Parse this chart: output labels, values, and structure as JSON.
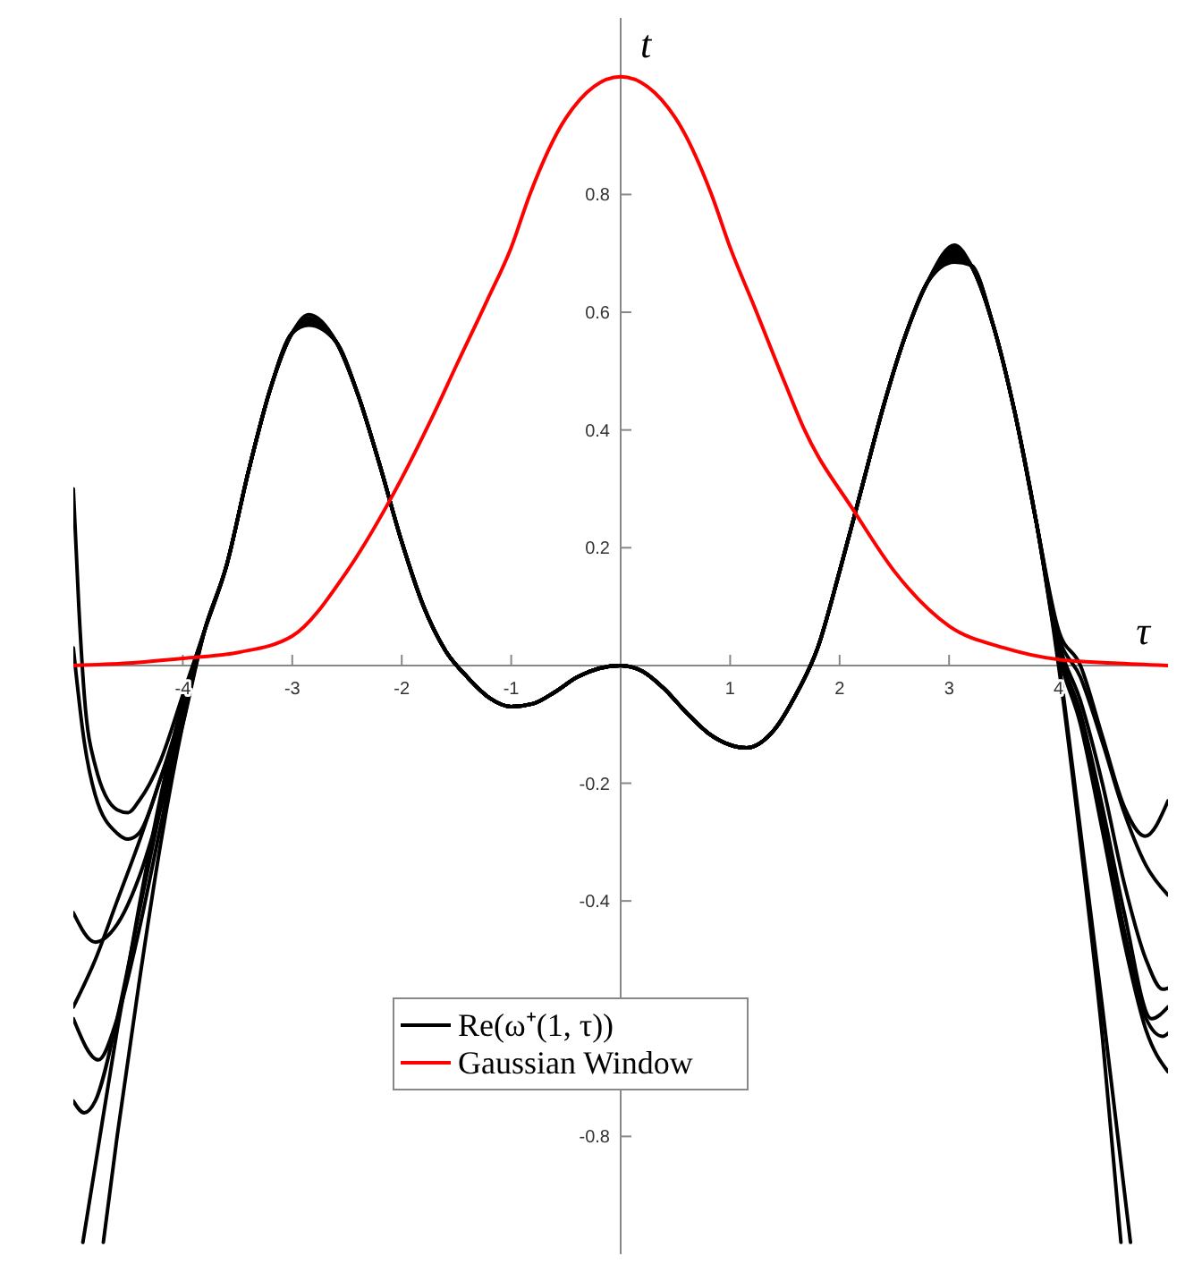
{
  "chart_data": {
    "type": "line",
    "xlabel": "τ",
    "ylabel": "t",
    "xlim": [
      -5,
      5
    ],
    "ylim": [
      -1,
      1.1
    ],
    "xticks": [
      -4,
      -3,
      -2,
      -1,
      1,
      2,
      3,
      4
    ],
    "yticks": [
      -0.8,
      -0.4,
      -0.2,
      0.2,
      0.4,
      0.6,
      0.8
    ],
    "legend": "bottom",
    "series": [
      {
        "name": "Re(ω⁺(1, τ))",
        "color": "#000000",
        "x": [
          -5,
          -4.95,
          -4.9,
          -4.8,
          -4.6,
          -4.5,
          -4.4,
          -4.2,
          -4,
          -3.8,
          -3.6,
          -3.4,
          -3.2,
          -3,
          -2.85,
          -2.6,
          -2.4,
          -2.2,
          -2,
          -1.8,
          -1.6,
          -1.4,
          -1.2,
          -1,
          -0.8,
          -0.6,
          -0.4,
          -0.2,
          0,
          0.2,
          0.4,
          0.6,
          0.8,
          1,
          1.15,
          1.4,
          1.6,
          1.8,
          2,
          2.2,
          2.4,
          2.6,
          2.8,
          3.05,
          3.2,
          3.4,
          3.6,
          3.8,
          4,
          4.2,
          4.4,
          4.6,
          4.79,
          5
        ],
        "values": [
          0.3,
          0.1,
          -0.05,
          -0.17,
          -0.245,
          -0.25,
          -0.23,
          -0.16,
          -0.05,
          0.06,
          0.17,
          0.33,
          0.47,
          0.565,
          0.596,
          0.55,
          0.46,
          0.34,
          0.21,
          0.1,
          0.025,
          -0.02,
          -0.055,
          -0.07,
          -0.065,
          -0.045,
          -0.02,
          -0.005,
          0,
          -0.01,
          -0.04,
          -0.08,
          -0.115,
          -0.135,
          -0.14,
          -0.11,
          -0.05,
          0.03,
          0.16,
          0.3,
          0.44,
          0.56,
          0.65,
          0.714,
          0.68,
          0.58,
          0.43,
          0.24,
          0.06,
          0,
          -0.12,
          -0.24,
          -0.29,
          -0.23
        ]
      },
      {
        "color": "#000000",
        "x": [
          -5,
          -4.9,
          -4.8,
          -4.6,
          -4.5,
          -4.4,
          -4.2,
          -4,
          -3.8,
          -3.6,
          -3.4,
          -3.2,
          -3,
          -2.85,
          -2.6,
          -2.4,
          -2.2,
          -2,
          -1.8,
          -1.6,
          -1.4,
          -1.2,
          -1,
          -0.8,
          -0.6,
          -0.4,
          -0.2,
          0,
          0.2,
          0.4,
          0.6,
          0.8,
          1,
          1.15,
          1.4,
          1.6,
          1.8,
          2,
          2.2,
          2.4,
          2.6,
          2.8,
          3.05,
          3.2,
          3.4,
          3.6,
          3.8,
          4,
          4.2,
          4.4,
          4.6,
          4.8,
          5
        ],
        "values": [
          0.03,
          -0.13,
          -0.22,
          -0.285,
          -0.295,
          -0.285,
          -0.19,
          -0.07,
          0.06,
          0.17,
          0.33,
          0.47,
          0.565,
          0.59,
          0.55,
          0.46,
          0.34,
          0.21,
          0.1,
          0.025,
          -0.02,
          -0.055,
          -0.07,
          -0.065,
          -0.045,
          -0.02,
          -0.005,
          0,
          -0.01,
          -0.04,
          -0.08,
          -0.115,
          -0.135,
          -0.14,
          -0.11,
          -0.05,
          0.03,
          0.16,
          0.3,
          0.44,
          0.56,
          0.65,
          0.71,
          0.68,
          0.58,
          0.43,
          0.24,
          0.05,
          -0.02,
          -0.13,
          -0.25,
          -0.34,
          -0.39
        ]
      },
      {
        "color": "#000000",
        "x": [
          -5,
          -4.8,
          -4.6,
          -4.4,
          -4.2,
          -4,
          -3.8,
          -3.6,
          -3.4,
          -3.2,
          -3,
          -2.85,
          -2.6,
          -2.4,
          -2.2,
          -2,
          -1.8,
          -1.6,
          -1.4,
          -1.2,
          -1,
          -0.8,
          -0.6,
          -0.4,
          -0.2,
          0,
          0.2,
          0.4,
          0.6,
          0.8,
          1,
          1.15,
          1.4,
          1.6,
          1.8,
          2,
          2.2,
          2.4,
          2.6,
          2.8,
          3.05,
          3.2,
          3.4,
          3.6,
          3.8,
          4,
          4.2,
          4.4,
          4.6,
          4.8,
          4.95,
          5
        ],
        "values": [
          -0.42,
          -0.47,
          -0.44,
          -0.36,
          -0.24,
          -0.1,
          0.06,
          0.17,
          0.33,
          0.47,
          0.565,
          0.588,
          0.55,
          0.46,
          0.34,
          0.21,
          0.1,
          0.025,
          -0.02,
          -0.055,
          -0.07,
          -0.065,
          -0.045,
          -0.02,
          -0.005,
          0,
          -0.01,
          -0.04,
          -0.08,
          -0.115,
          -0.135,
          -0.14,
          -0.11,
          -0.05,
          0.03,
          0.16,
          0.3,
          0.44,
          0.56,
          0.65,
          0.705,
          0.68,
          0.58,
          0.43,
          0.24,
          0.04,
          -0.06,
          -0.2,
          -0.37,
          -0.5,
          -0.55,
          -0.548
        ]
      },
      {
        "color": "#000000",
        "x": [
          -5,
          -4.8,
          -4.6,
          -4.4,
          -4.2,
          -4,
          -3.8,
          -3.6,
          -3.4,
          -3.2,
          -3,
          -2.85,
          -2.6,
          -2.4,
          -2.2,
          -2,
          -1.8,
          -1.6,
          -1.4,
          -1.2,
          -1,
          -0.8,
          -0.6,
          -0.4,
          -0.2,
          0,
          0.2,
          0.4,
          0.6,
          0.8,
          1,
          1.15,
          1.4,
          1.6,
          1.8,
          2,
          2.2,
          2.4,
          2.6,
          2.8,
          3.05,
          3.2,
          3.4,
          3.6,
          3.8,
          4,
          4.2,
          4.4,
          4.6,
          4.85,
          5
        ],
        "values": [
          -0.58,
          -0.5,
          -0.4,
          -0.3,
          -0.19,
          -0.08,
          0.06,
          0.17,
          0.33,
          0.47,
          0.565,
          0.585,
          0.55,
          0.46,
          0.34,
          0.21,
          0.1,
          0.025,
          -0.02,
          -0.055,
          -0.07,
          -0.065,
          -0.045,
          -0.02,
          -0.005,
          0,
          -0.01,
          -0.04,
          -0.08,
          -0.115,
          -0.135,
          -0.14,
          -0.11,
          -0.05,
          0.03,
          0.16,
          0.3,
          0.44,
          0.56,
          0.65,
          0.7,
          0.68,
          0.58,
          0.43,
          0.24,
          0.03,
          -0.08,
          -0.24,
          -0.42,
          -0.6,
          -0.58
        ]
      },
      {
        "color": "#000000",
        "x": [
          -5,
          -4.77,
          -4.6,
          -4.4,
          -4.2,
          -4,
          -3.8,
          -3.6,
          -3.4,
          -3.2,
          -3,
          -2.85,
          -2.6,
          -2.4,
          -2.2,
          -2,
          -1.8,
          -1.6,
          -1.4,
          -1.2,
          -1,
          -0.8,
          -0.6,
          -0.4,
          -0.2,
          0,
          0.2,
          0.4,
          0.6,
          0.8,
          1,
          1.15,
          1.4,
          1.6,
          1.8,
          2,
          2.2,
          2.4,
          2.6,
          2.8,
          3.05,
          3.2,
          3.4,
          3.6,
          3.8,
          4,
          4.2,
          4.4,
          4.6,
          4.8,
          4.95,
          5
        ],
        "values": [
          -0.6,
          -0.67,
          -0.6,
          -0.45,
          -0.27,
          -0.09,
          0.06,
          0.17,
          0.33,
          0.47,
          0.565,
          0.583,
          0.55,
          0.46,
          0.34,
          0.21,
          0.1,
          0.025,
          -0.02,
          -0.055,
          -0.07,
          -0.065,
          -0.045,
          -0.02,
          -0.005,
          0,
          -0.01,
          -0.04,
          -0.08,
          -0.115,
          -0.135,
          -0.14,
          -0.11,
          -0.05,
          0.03,
          0.16,
          0.3,
          0.44,
          0.56,
          0.65,
          0.695,
          0.68,
          0.58,
          0.43,
          0.24,
          0.03,
          -0.09,
          -0.26,
          -0.45,
          -0.6,
          -0.63,
          -0.625
        ]
      },
      {
        "color": "#000000",
        "x": [
          -5,
          -4.9,
          -4.8,
          -4.6,
          -4.4,
          -4.2,
          -4,
          -3.8,
          -3.6,
          -3.4,
          -3.2,
          -3,
          -2.85,
          -2.6,
          -2.4,
          -2.2,
          -2,
          -1.8,
          -1.6,
          -1.4,
          -1.2,
          -1,
          -0.8,
          -0.6,
          -0.4,
          -0.2,
          0,
          0.2,
          0.4,
          0.6,
          0.8,
          1,
          1.15,
          1.4,
          1.6,
          1.8,
          2,
          2.2,
          2.4,
          2.6,
          2.8,
          3.05,
          3.2,
          3.4,
          3.6,
          3.8,
          4,
          4.2,
          4.4,
          4.6,
          4.8,
          5
        ],
        "values": [
          -0.74,
          -0.76,
          -0.74,
          -0.6,
          -0.42,
          -0.24,
          -0.08,
          0.06,
          0.17,
          0.33,
          0.47,
          0.565,
          0.581,
          0.55,
          0.46,
          0.34,
          0.21,
          0.1,
          0.025,
          -0.02,
          -0.055,
          -0.07,
          -0.065,
          -0.045,
          -0.02,
          -0.005,
          0,
          -0.01,
          -0.04,
          -0.08,
          -0.115,
          -0.135,
          -0.14,
          -0.11,
          -0.05,
          0.03,
          0.16,
          0.3,
          0.44,
          0.56,
          0.65,
          0.69,
          0.68,
          0.58,
          0.43,
          0.24,
          0.02,
          -0.1,
          -0.28,
          -0.47,
          -0.62,
          -0.69
        ]
      },
      {
        "color": "#000000",
        "x": [
          -4.913,
          -4.8,
          -4.6,
          -4.4,
          -4.2,
          -4,
          -3.8,
          -3.6,
          -3.4,
          -3.2,
          -3,
          -2.85,
          -2.6,
          -2.4,
          -2.2,
          -2,
          -1.8,
          -1.6,
          -1.4,
          -1.2,
          -1,
          -0.8,
          -0.6,
          -0.4,
          -0.2,
          0,
          0.2,
          0.4,
          0.6,
          0.8,
          1,
          1.15,
          1.4,
          1.6,
          1.8,
          2,
          2.2,
          2.4,
          2.6,
          2.8,
          3.05,
          3.2,
          3.4,
          3.6,
          3.8,
          4,
          4.2,
          4.4,
          4.657
        ],
        "values": [
          -0.98,
          -0.85,
          -0.62,
          -0.41,
          -0.22,
          -0.06,
          0.06,
          0.17,
          0.33,
          0.47,
          0.565,
          0.58,
          0.55,
          0.46,
          0.34,
          0.21,
          0.1,
          0.025,
          -0.02,
          -0.055,
          -0.07,
          -0.065,
          -0.045,
          -0.02,
          -0.005,
          0,
          -0.01,
          -0.04,
          -0.08,
          -0.115,
          -0.135,
          -0.14,
          -0.11,
          -0.05,
          0.03,
          0.16,
          0.3,
          0.44,
          0.56,
          0.65,
          0.687,
          0.68,
          0.58,
          0.43,
          0.24,
          0.01,
          -0.28,
          -0.58,
          -0.98
        ]
      },
      {
        "color": "#000000",
        "x": [
          -4.726,
          -4.6,
          -4.4,
          -4.2,
          -4,
          -3.8,
          -3.6,
          -3.4,
          -3.2,
          -3,
          -2.85,
          -2.6,
          -2.4,
          -2.2,
          -2,
          -1.8,
          -1.6,
          -1.4,
          -1.2,
          -1,
          -0.8,
          -0.6,
          -0.4,
          -0.2,
          0,
          0.2,
          0.4,
          0.6,
          0.8,
          1,
          1.15,
          1.4,
          1.6,
          1.8,
          2,
          2.2,
          2.4,
          2.6,
          2.8,
          3.05,
          3.2,
          3.4,
          3.6,
          3.8,
          4,
          4.2,
          4.4,
          4.57
        ],
        "values": [
          -0.98,
          -0.8,
          -0.54,
          -0.3,
          -0.1,
          0.06,
          0.17,
          0.33,
          0.47,
          0.565,
          0.578,
          0.55,
          0.46,
          0.34,
          0.21,
          0.1,
          0.025,
          -0.02,
          -0.055,
          -0.07,
          -0.065,
          -0.045,
          -0.02,
          -0.005,
          0,
          -0.01,
          -0.04,
          -0.08,
          -0.115,
          -0.135,
          -0.14,
          -0.11,
          -0.05,
          0.03,
          0.16,
          0.3,
          0.44,
          0.56,
          0.65,
          0.685,
          0.68,
          0.58,
          0.43,
          0.24,
          0,
          -0.3,
          -0.63,
          -0.98
        ]
      },
      {
        "name": "Gaussian Window",
        "color": "#ff0000",
        "x": [
          -5,
          -4.5,
          -4,
          -3.5,
          -3,
          -2.5,
          -2.11,
          -1.7,
          -1.5,
          -1.22,
          -1,
          -0.83,
          -0.5,
          0,
          0.5,
          0.83,
          1,
          1.22,
          1.5,
          1.68,
          2.14,
          2.5,
          3,
          3.5,
          4,
          4.5,
          5
        ],
        "values": [
          0,
          0.004,
          0.012,
          0.022,
          0.05,
          0.16,
          0.28,
          0.43,
          0.51,
          0.62,
          0.71,
          0.8,
          0.93,
          1,
          0.93,
          0.8,
          0.71,
          0.61,
          0.48,
          0.4,
          0.26,
          0.16,
          0.067,
          0.03,
          0.01,
          0.004,
          0
        ]
      }
    ]
  }
}
